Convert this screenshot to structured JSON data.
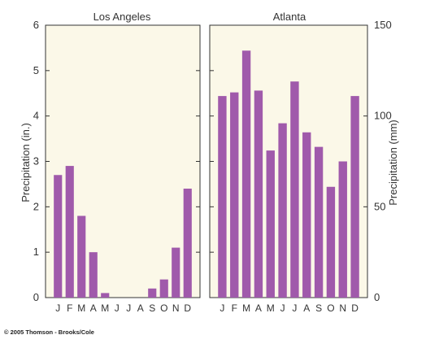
{
  "colors": {
    "background": "#fbf8e8",
    "bar": "#a05aab",
    "axis": "#333333",
    "text": "#333333"
  },
  "copyright": "© 2005 Thomson - Brooks/Cole",
  "chart_data": [
    {
      "type": "bar",
      "title": "Los Angeles",
      "ylabel": "Precipitation (in.)",
      "ylim": [
        0,
        6
      ],
      "yticks": [
        "0",
        "1",
        "2",
        "3",
        "4",
        "5",
        "6"
      ],
      "axis_side": "left",
      "categories": [
        "J",
        "F",
        "M",
        "A",
        "M",
        "J",
        "J",
        "A",
        "S",
        "O",
        "N",
        "D"
      ],
      "values": [
        2.7,
        2.9,
        1.8,
        1.0,
        0.1,
        0.0,
        0.0,
        0.0,
        0.2,
        0.4,
        1.1,
        2.4
      ]
    },
    {
      "type": "bar",
      "title": "Atlanta",
      "ylabel": "Precipitation (mm)",
      "ylim": [
        0,
        150
      ],
      "yticks": [
        "0",
        "50",
        "100",
        "150"
      ],
      "axis_side": "right",
      "categories": [
        "J",
        "F",
        "M",
        "A",
        "M",
        "J",
        "J",
        "A",
        "S",
        "O",
        "N",
        "D"
      ],
      "values": [
        111,
        113,
        136,
        114,
        81,
        96,
        119,
        91,
        83,
        61,
        75,
        111
      ]
    }
  ]
}
